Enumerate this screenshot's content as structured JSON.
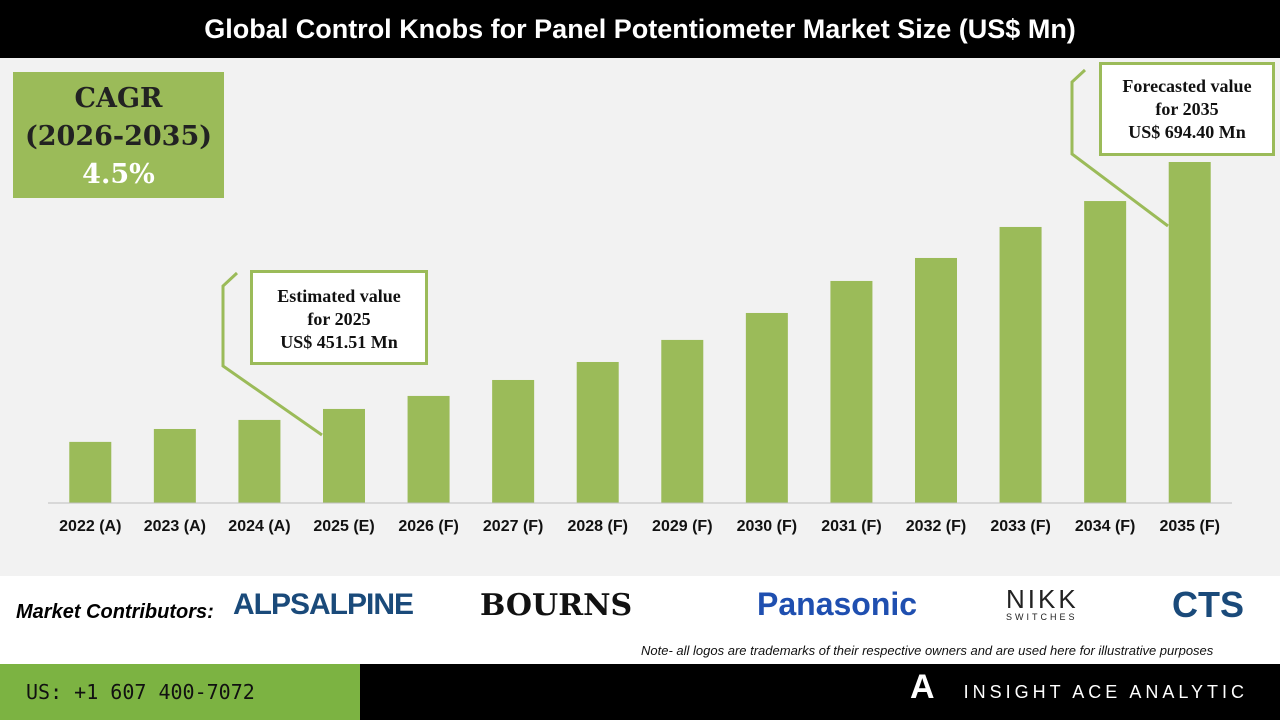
{
  "title": "Global Control Knobs for Panel Potentiometer Market Size (US$ Mn)",
  "cagr": {
    "label": "CAGR",
    "period": "(2026-2035)",
    "value": "4.5%"
  },
  "callouts": {
    "estimated": {
      "line1": "Estimated value",
      "line2": "for 2025",
      "line3": "US$ 451.51 Mn"
    },
    "forecast": {
      "line1": "Forecasted value",
      "line2": "for 2035",
      "line3": "US$ 694.40 Mn"
    }
  },
  "chart_data": {
    "type": "bar",
    "title": "Global Control Knobs for Panel Potentiometer Market Size (US$ Mn)",
    "categories": [
      "2022 (A)",
      "2023 (A)",
      "2024 (A)",
      "2025 (E)",
      "2026 (F)",
      "2027 (F)",
      "2028 (F)",
      "2029 (F)",
      "2030 (F)",
      "2031 (F)",
      "2032 (F)",
      "2033 (F)",
      "2034 (F)",
      "2035 (F)"
    ],
    "values": [
      419.1,
      431.8,
      440.7,
      451.51,
      464.3,
      480.0,
      497.7,
      519.4,
      545.9,
      577.4,
      600.0,
      630.5,
      656.0,
      694.4
    ],
    "ylim": [
      359,
      694.4
    ],
    "grid": false,
    "color": "#9bbb59"
  },
  "contributors": {
    "label": "Market Contributors:",
    "logos": [
      "ALPSALPINE",
      "BOURNS",
      "Panasonic",
      "NIKK",
      "SWITCHES",
      "CTS"
    ]
  },
  "note": "Note- all logos are trademarks of their respective owners and are used here for illustrative purposes",
  "footer": {
    "phone": "US: +1 607 400-7072",
    "brand": "INSIGHT ACE ANALYTIC"
  }
}
